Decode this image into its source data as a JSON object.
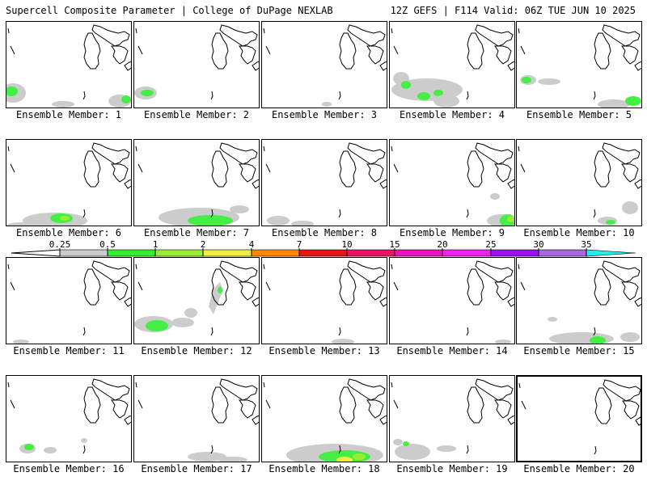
{
  "header": {
    "left": "Supercell Composite Parameter | College of DuPage NEXLAB",
    "right": "12Z GEFS | F114 Valid: 06Z TUE JUN 10 2025"
  },
  "colorbar": {
    "ticks": [
      "0.25",
      "0.5",
      "1",
      "2",
      "4",
      "7",
      "10",
      "15",
      "20",
      "25",
      "30",
      "35"
    ],
    "colors": [
      "#cccccc",
      "#33ee33",
      "#99ee33",
      "#eeee44",
      "#ff8800",
      "#ee1111",
      "#ee1166",
      "#ee11bb",
      "#ee22ee",
      "#9911ee",
      "#aa66dd",
      "#22eeee"
    ]
  },
  "members": [
    {
      "label": "Ensemble Member: 1"
    },
    {
      "label": "Ensemble Member: 2"
    },
    {
      "label": "Ensemble Member: 3"
    },
    {
      "label": "Ensemble Member: 4"
    },
    {
      "label": "Ensemble Member: 5"
    },
    {
      "label": "Ensemble Member: 6"
    },
    {
      "label": "Ensemble Member: 7"
    },
    {
      "label": "Ensemble Member: 8"
    },
    {
      "label": "Ensemble Member: 9"
    },
    {
      "label": "Ensemble Member: 10"
    },
    {
      "label": "Ensemble Member: 11"
    },
    {
      "label": "Ensemble Member: 12"
    },
    {
      "label": "Ensemble Member: 13"
    },
    {
      "label": "Ensemble Member: 14"
    },
    {
      "label": "Ensemble Member: 15"
    },
    {
      "label": "Ensemble Member: 16"
    },
    {
      "label": "Ensemble Member: 17"
    },
    {
      "label": "Ensemble Member: 18"
    },
    {
      "label": "Ensemble Member: 19"
    },
    {
      "label": "Ensemble Member: 20"
    }
  ]
}
